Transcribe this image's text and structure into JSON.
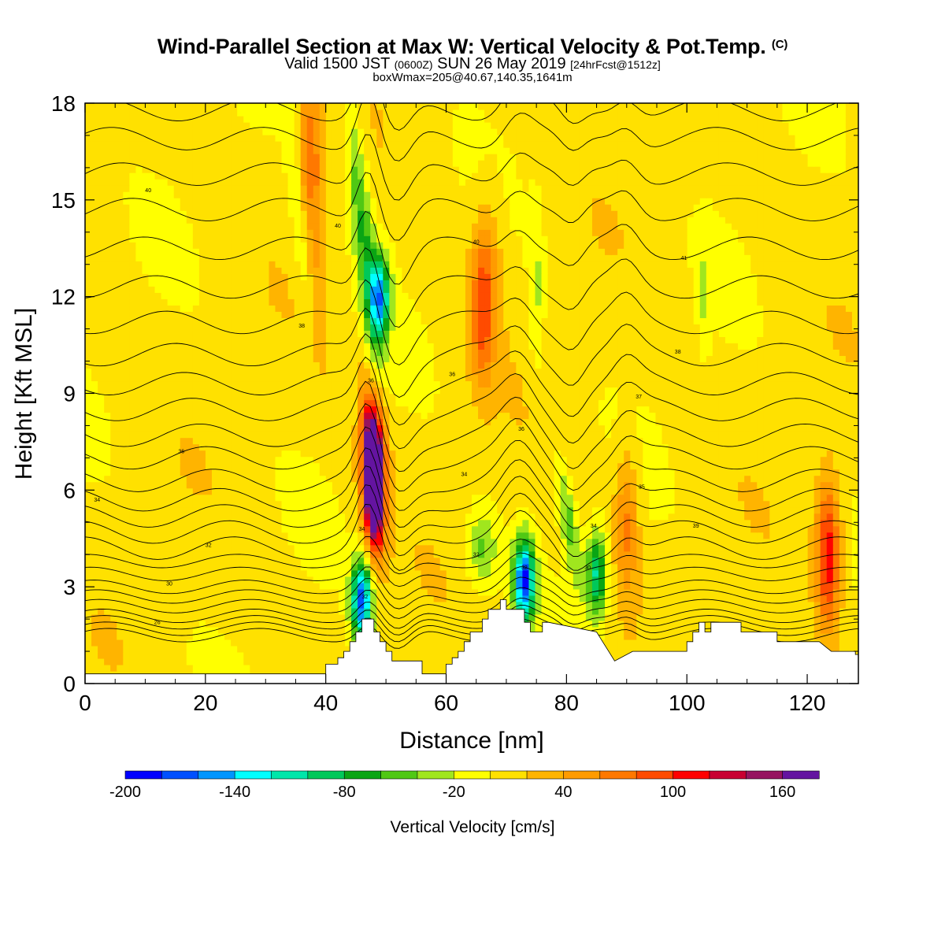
{
  "header": {
    "title": "Wind-Parallel Section at Max W: Vertical Velocity & Pot.Temp.",
    "copyright_mark": "(C)",
    "valid_prefix": "Valid 1500 JST",
    "valid_utc": "(0600Z)",
    "valid_date": "SUN 26 May 2019",
    "forecast_info": "[24hrFcst@1512z]",
    "box_info": "boxWmax=205@40.67,140.35,1641m"
  },
  "chart_data": {
    "type": "contour-section",
    "title": "Wind-Parallel Section at Max W: Vertical Velocity & Pot.Temp.",
    "xlabel": "Distance [nm]",
    "ylabel": "Height [Kft MSL]",
    "xlim": [
      0,
      128.5
    ],
    "ylim": [
      0,
      18
    ],
    "x_ticks": [
      "0",
      "20",
      "40",
      "60",
      "80",
      "100",
      "120"
    ],
    "y_ticks": [
      "0",
      "3",
      "6",
      "9",
      "12",
      "15",
      "18"
    ],
    "grid": false,
    "colorbar": {
      "label": "Vertical Velocity [cm/s]",
      "min": -200,
      "max": 180,
      "step": 20,
      "tick_labels": [
        "-200",
        "-140",
        "-80",
        "-20",
        "40",
        "100",
        "160"
      ],
      "colors": [
        "#0000ff",
        "#0050ff",
        "#0096ff",
        "#00ffff",
        "#00e6aa",
        "#00c85a",
        "#0aa514",
        "#50c814",
        "#a0e61e",
        "#ffff00",
        "#ffe100",
        "#ffb400",
        "#ff9b00",
        "#ff7800",
        "#ff4b00",
        "#ff0000",
        "#c80032",
        "#961460",
        "#6414a0"
      ]
    },
    "vertical_velocity_features": [
      {
        "kind": "updraft",
        "x": 48,
        "y": 6.5,
        "peak": 190
      },
      {
        "kind": "updraft",
        "x": 37,
        "y": 16.5,
        "peak": 60
      },
      {
        "kind": "updraft",
        "x": 66,
        "y": 11.5,
        "peak": 70
      },
      {
        "kind": "updraft",
        "x": 90,
        "y": 5.0,
        "peak": 60
      },
      {
        "kind": "updraft",
        "x": 123.5,
        "y": 4.0,
        "peak": 110
      },
      {
        "kind": "downdraft",
        "x": 46,
        "y": 2.6,
        "peak": -180
      },
      {
        "kind": "downdraft",
        "x": 73,
        "y": 3.2,
        "peak": -190
      },
      {
        "kind": "downdraft",
        "x": 85,
        "y": 3.4,
        "peak": -110
      },
      {
        "kind": "downdraft",
        "x": 49,
        "y": 12.0,
        "peak": -140
      }
    ],
    "theta_contours": {
      "base_height": [
        1.5,
        1.7,
        1.9,
        2.1,
        2.4,
        2.7,
        3.0,
        3.4,
        3.8,
        4.2,
        4.7,
        5.2,
        5.7,
        6.3,
        7.0,
        7.7,
        8.5,
        9.3,
        10.2,
        11.2,
        12.3,
        13.5,
        14.7,
        15.8,
        16.9,
        17.8
      ],
      "labels": [
        {
          "text": "26",
          "x": 12,
          "y": 1.9
        },
        {
          "text": "30",
          "x": 14,
          "y": 3.1
        },
        {
          "text": "32",
          "x": 20.5,
          "y": 4.3
        },
        {
          "text": "34",
          "x": 2,
          "y": 5.7
        },
        {
          "text": "36",
          "x": 16,
          "y": 7.2
        },
        {
          "text": "40",
          "x": 10.5,
          "y": 15.3
        },
        {
          "text": "40",
          "x": 42,
          "y": 14.2
        },
        {
          "text": "40",
          "x": 65,
          "y": 13.7
        },
        {
          "text": "38",
          "x": 36,
          "y": 11.1
        },
        {
          "text": "36",
          "x": 47.5,
          "y": 9.4
        },
        {
          "text": "34",
          "x": 46,
          "y": 4.8
        },
        {
          "text": "32",
          "x": 46.5,
          "y": 2.7
        },
        {
          "text": "36",
          "x": 61,
          "y": 9.6
        },
        {
          "text": "36",
          "x": 72.5,
          "y": 7.9
        },
        {
          "text": "34",
          "x": 63,
          "y": 6.5
        },
        {
          "text": "32",
          "x": 65,
          "y": 4.0
        },
        {
          "text": "32",
          "x": 73,
          "y": 3.6
        },
        {
          "text": "34",
          "x": 84.5,
          "y": 4.9
        },
        {
          "text": "30",
          "x": 83.5,
          "y": 3.6
        },
        {
          "text": "35",
          "x": 92.5,
          "y": 6.1
        },
        {
          "text": "37",
          "x": 92,
          "y": 8.9
        },
        {
          "text": "38",
          "x": 98.5,
          "y": 10.3
        },
        {
          "text": "41",
          "x": 99.5,
          "y": 13.2
        },
        {
          "text": "39",
          "x": 101.5,
          "y": 4.9
        }
      ]
    },
    "terrain": {
      "x": [
        0,
        40,
        40,
        42,
        42,
        43,
        43,
        44,
        44,
        45,
        45,
        46,
        46,
        48,
        48,
        49,
        49,
        50,
        50,
        51,
        51,
        56,
        56,
        60,
        60,
        61,
        61,
        62,
        62,
        63,
        63,
        64,
        64,
        66,
        66,
        67,
        67,
        69,
        69,
        70,
        70,
        73,
        73,
        74,
        74,
        76,
        76,
        77,
        77,
        85,
        85,
        86,
        86,
        87,
        87,
        88,
        88,
        91,
        91,
        100,
        100,
        101,
        101,
        102,
        102,
        103,
        103,
        104,
        104,
        106,
        106,
        109,
        109,
        114,
        114,
        115,
        115,
        122,
        122,
        124,
        124,
        128,
        128,
        128.5
      ],
      "y": [
        0.3,
        0.3,
        0.6,
        0.6,
        0.8,
        0.8,
        1.0,
        1.0,
        1.3,
        1.3,
        1.6,
        1.6,
        2.0,
        2.0,
        1.6,
        1.6,
        1.3,
        1.3,
        1.0,
        1.0,
        0.7,
        0.7,
        0.3,
        0.3,
        0.6,
        0.6,
        0.8,
        0.8,
        1.0,
        1.0,
        1.3,
        1.3,
        1.6,
        1.6,
        2.0,
        2.0,
        2.3,
        2.3,
        2.6,
        2.6,
        2.3,
        2.3,
        1.9,
        1.9,
        1.6,
        1.6,
        1.9,
        1.9,
        1.9,
        1.6,
        1.6,
        1.3,
        1.3,
        1.0,
        1.0,
        0.7,
        0.7,
        1.0,
        1.0,
        1.0,
        1.3,
        1.3,
        1.6,
        1.6,
        1.9,
        1.9,
        1.6,
        1.6,
        1.9,
        1.9,
        1.9,
        1.9,
        1.6,
        1.6,
        1.6,
        1.6,
        1.3,
        1.3,
        1.3,
        1.0,
        1.0,
        1.0,
        0.9,
        0.9
      ]
    }
  }
}
